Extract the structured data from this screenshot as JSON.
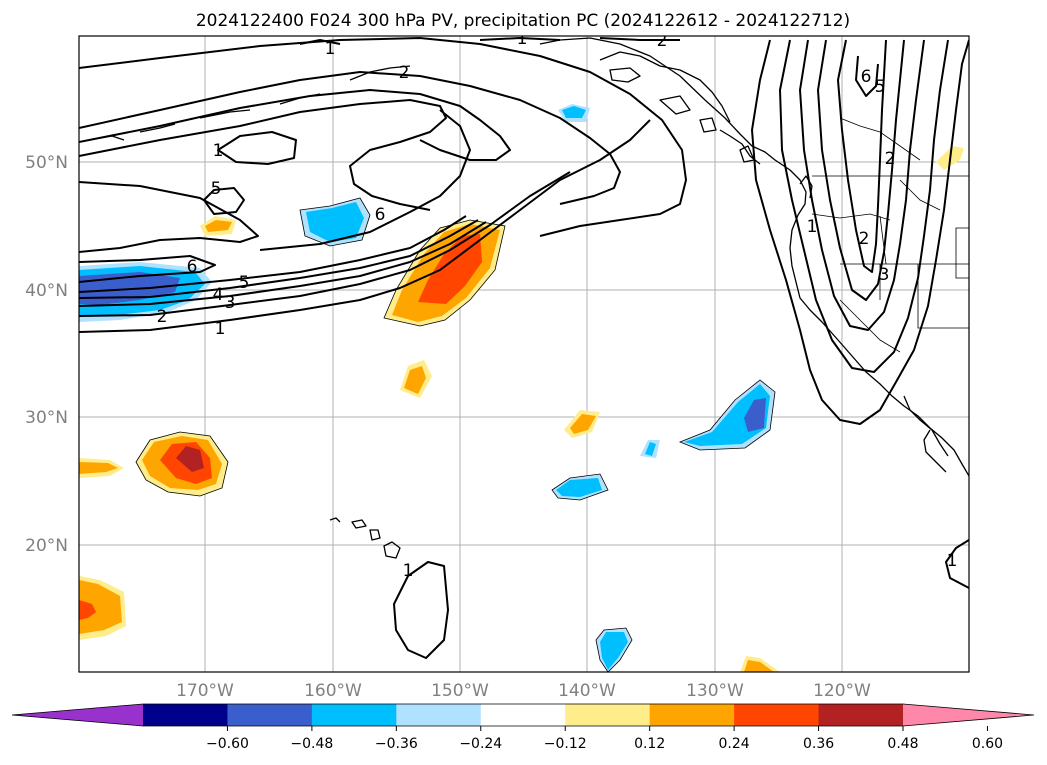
{
  "title": "2024122400 F024 300 hPa PV, precipitation PC (2024122612 - 2024122712)",
  "lat_labels": [
    "50°N",
    "40°N",
    "30°N",
    "20°N"
  ],
  "lon_labels": [
    "170°W",
    "160°W",
    "150°W",
    "140°W",
    "130°W",
    "120°W"
  ],
  "colorbar": {
    "ticks": [
      "−0.60",
      "−0.48",
      "−0.36",
      "−0.24",
      "−0.12",
      "0.12",
      "0.24",
      "0.36",
      "0.48",
      "0.60"
    ],
    "colors": [
      "#9932cc",
      "#00008b",
      "#3a5fcd",
      "#00bfff",
      "#b0e2ff",
      "#ffffff",
      "#ffec8b",
      "#ffa500",
      "#ff4500",
      "#b22222",
      "#ff88aa"
    ]
  },
  "contour_labels": [
    "1",
    "1",
    "2",
    "1",
    "2",
    "5",
    "6",
    "2",
    "4",
    "3",
    "1",
    "5",
    "6",
    "6",
    "5",
    "2",
    "2",
    "1",
    "3",
    "1",
    "1"
  ],
  "fill_colors": {
    "neg_light": "#b0e2ff",
    "neg_mid": "#00bfff",
    "neg_dark": "#3a5fcd",
    "pos_light": "#ffec8b",
    "pos_mid": "#ffa500",
    "pos_strong": "#ff4500",
    "pos_dark": "#b22222"
  }
}
